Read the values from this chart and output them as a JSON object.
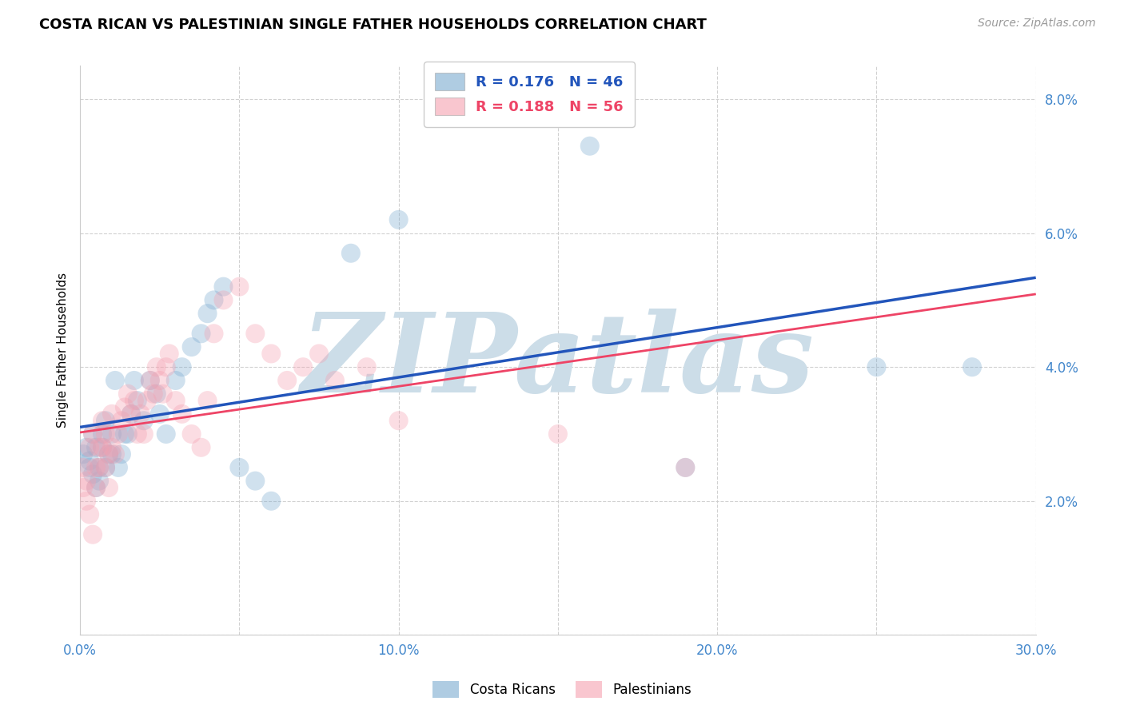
{
  "title": "COSTA RICAN VS PALESTINIAN SINGLE FATHER HOUSEHOLDS CORRELATION CHART",
  "source": "Source: ZipAtlas.com",
  "ylabel": "Single Father Households",
  "x_ticks": [
    0.0,
    0.05,
    0.1,
    0.15,
    0.2,
    0.25,
    0.3
  ],
  "x_tick_labels": [
    "0.0%",
    "",
    "10.0%",
    "",
    "20.0%",
    "",
    "30.0%"
  ],
  "y_ticks": [
    0.0,
    0.02,
    0.04,
    0.06,
    0.08
  ],
  "y_tick_labels": [
    "",
    "2.0%",
    "4.0%",
    "6.0%",
    "8.0%"
  ],
  "xlim": [
    0.0,
    0.3
  ],
  "ylim": [
    0.0,
    0.085
  ],
  "legend_label_cr": "Costa Ricans",
  "legend_label_pal": "Palestinians",
  "cr_color": "#7aaad0",
  "pal_color": "#f5a0b0",
  "cr_line_color": "#2255bb",
  "pal_line_color": "#ee4466",
  "watermark_text": "ZIPatlas",
  "watermark_color": "#ccdde8",
  "cr_r": "0.176",
  "cr_n": "46",
  "pal_r": "0.188",
  "pal_n": "56",
  "costa_rican_x": [
    0.001,
    0.002,
    0.003,
    0.003,
    0.004,
    0.004,
    0.005,
    0.005,
    0.006,
    0.006,
    0.007,
    0.007,
    0.008,
    0.008,
    0.009,
    0.01,
    0.01,
    0.011,
    0.012,
    0.013,
    0.014,
    0.015,
    0.016,
    0.017,
    0.018,
    0.02,
    0.022,
    0.024,
    0.025,
    0.027,
    0.03,
    0.032,
    0.035,
    0.038,
    0.04,
    0.042,
    0.045,
    0.05,
    0.055,
    0.06,
    0.085,
    0.1,
    0.16,
    0.19,
    0.25,
    0.28
  ],
  "costa_rican_y": [
    0.027,
    0.028,
    0.026,
    0.025,
    0.03,
    0.024,
    0.022,
    0.028,
    0.023,
    0.025,
    0.028,
    0.03,
    0.032,
    0.025,
    0.027,
    0.027,
    0.03,
    0.038,
    0.025,
    0.027,
    0.03,
    0.03,
    0.033,
    0.038,
    0.035,
    0.032,
    0.038,
    0.036,
    0.033,
    0.03,
    0.038,
    0.04,
    0.043,
    0.045,
    0.048,
    0.05,
    0.052,
    0.025,
    0.023,
    0.02,
    0.057,
    0.062,
    0.073,
    0.025,
    0.04,
    0.04
  ],
  "palestinian_x": [
    0.001,
    0.001,
    0.002,
    0.002,
    0.003,
    0.003,
    0.004,
    0.004,
    0.005,
    0.005,
    0.006,
    0.006,
    0.007,
    0.007,
    0.008,
    0.008,
    0.009,
    0.009,
    0.01,
    0.01,
    0.011,
    0.012,
    0.013,
    0.014,
    0.015,
    0.016,
    0.017,
    0.018,
    0.019,
    0.02,
    0.021,
    0.022,
    0.023,
    0.024,
    0.025,
    0.026,
    0.027,
    0.028,
    0.03,
    0.032,
    0.035,
    0.038,
    0.04,
    0.042,
    0.045,
    0.05,
    0.055,
    0.06,
    0.065,
    0.07,
    0.075,
    0.08,
    0.09,
    0.1,
    0.15,
    0.19
  ],
  "palestinian_y": [
    0.025,
    0.022,
    0.023,
    0.02,
    0.018,
    0.028,
    0.015,
    0.03,
    0.025,
    0.022,
    0.028,
    0.025,
    0.032,
    0.028,
    0.025,
    0.03,
    0.027,
    0.022,
    0.033,
    0.028,
    0.027,
    0.03,
    0.032,
    0.034,
    0.036,
    0.033,
    0.035,
    0.03,
    0.033,
    0.03,
    0.035,
    0.038,
    0.036,
    0.04,
    0.038,
    0.036,
    0.04,
    0.042,
    0.035,
    0.033,
    0.03,
    0.028,
    0.035,
    0.045,
    0.05,
    0.052,
    0.045,
    0.042,
    0.038,
    0.04,
    0.042,
    0.038,
    0.04,
    0.032,
    0.03,
    0.025
  ]
}
